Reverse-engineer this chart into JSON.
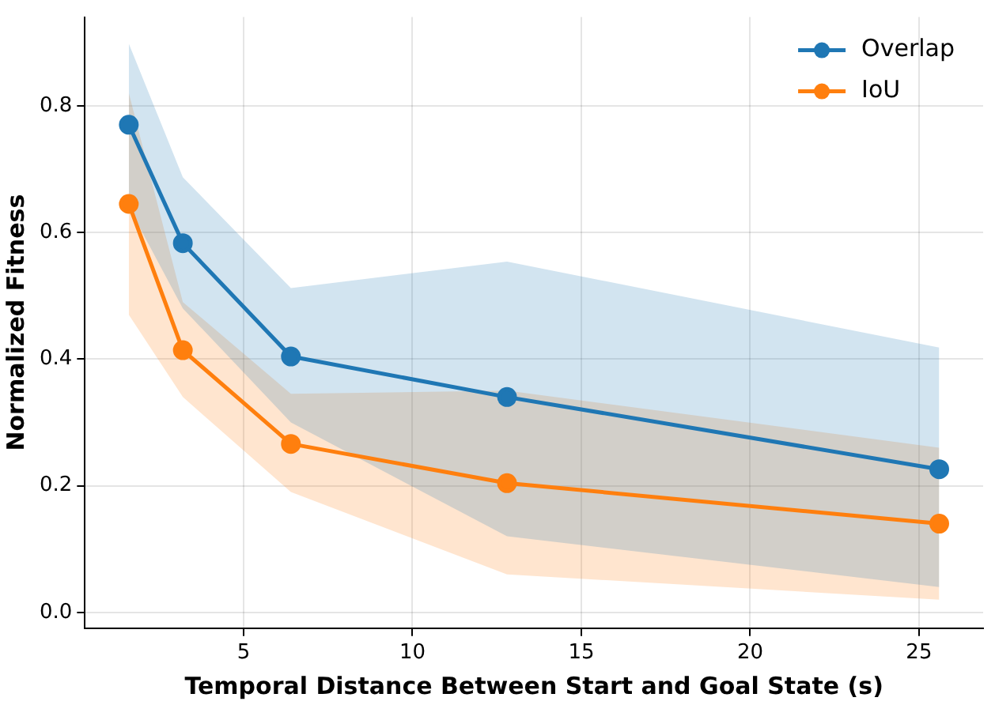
{
  "chart_data": {
    "type": "line",
    "xlabel": "Temporal Distance Between Start and Goal State (s)",
    "ylabel": "Normalized Fitness",
    "x": [
      1.6,
      3.2,
      6.4,
      12.8,
      25.6
    ],
    "series": [
      {
        "name": "Overlap",
        "color": "#1f77b4",
        "values": [
          0.77,
          0.583,
          0.404,
          0.34,
          0.226
        ],
        "lower": [
          0.64,
          0.48,
          0.3,
          0.12,
          0.04
        ],
        "upper": [
          0.898,
          0.687,
          0.512,
          0.554,
          0.418
        ]
      },
      {
        "name": "IoU",
        "color": "#ff7f0e",
        "values": [
          0.645,
          0.414,
          0.266,
          0.204,
          0.14
        ],
        "lower": [
          0.47,
          0.34,
          0.19,
          0.06,
          0.02
        ],
        "upper": [
          0.82,
          0.49,
          0.345,
          0.35,
          0.26
        ]
      }
    ],
    "xlim": [
      0.3,
      26.9
    ],
    "xticks": [
      5,
      10,
      15,
      20,
      25
    ],
    "ylim": [
      -0.025,
      0.94
    ],
    "yticks": [
      {
        "value": 0,
        "label": "0.0"
      },
      {
        "value": 0.2,
        "label": "0.2"
      },
      {
        "value": 0.4,
        "label": "0.4"
      },
      {
        "value": 0.6,
        "label": "0.6"
      },
      {
        "value": 0.8,
        "label": "0.8"
      }
    ],
    "grid": true,
    "legend": "top right",
    "marker": "circle",
    "line_style": "solid"
  }
}
